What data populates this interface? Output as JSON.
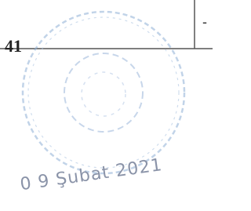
{
  "cell_text": "-",
  "page_number": "41",
  "stamp": {
    "date": "0 9 Şubat 2021"
  }
}
